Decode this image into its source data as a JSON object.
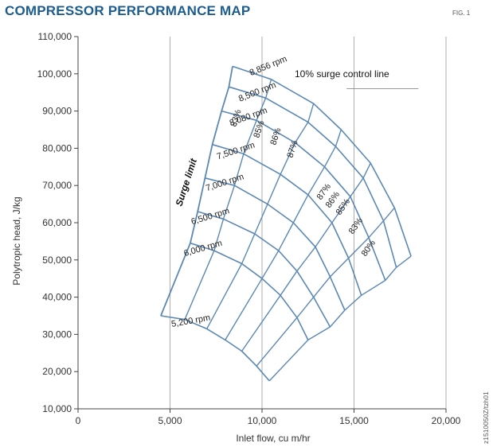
{
  "figure": {
    "title": "COMPRESSOR PERFORMANCE MAP",
    "label": "FIG. 1",
    "code": "z1510050Z/tzh01"
  },
  "chart_data": {
    "type": "line",
    "title": "COMPRESSOR PERFORMANCE MAP",
    "xlabel": "Inlet flow, cu m/hr",
    "ylabel": "Polytropic head, J/kg",
    "xlim": [
      0,
      20000
    ],
    "ylim": [
      10000,
      110000
    ],
    "x_ticks": [
      0,
      5000,
      10000,
      15000,
      20000
    ],
    "x_tick_labels": [
      "0",
      "5,000",
      "10,000",
      "15,000",
      "20,000"
    ],
    "y_ticks": [
      10000,
      20000,
      30000,
      40000,
      50000,
      60000,
      70000,
      80000,
      90000,
      100000,
      110000
    ],
    "y_tick_labels": [
      "10,000",
      "20,000",
      "30,000",
      "40,000",
      "50,000",
      "60,000",
      "70,000",
      "80,000",
      "90,000",
      "100,000",
      "110,000"
    ],
    "grid": "vertical",
    "line_color": "#5b88b4",
    "speed_lines": [
      {
        "label": "8,856 rpm",
        "x": [
          8400,
          10500,
          12800,
          14300,
          15900,
          17200,
          18100
        ],
        "y": [
          102000,
          98500,
          92000,
          85000,
          76000,
          64000,
          51000
        ]
      },
      {
        "label": "8,500 rpm",
        "x": [
          8200,
          10200,
          12500,
          14000,
          15500,
          16600,
          17300
        ],
        "y": [
          96500,
          93500,
          87000,
          80500,
          72000,
          60500,
          48000
        ]
      },
      {
        "label": "8,080 rpm",
        "x": [
          7800,
          9700,
          11800,
          13400,
          14800,
          15800,
          16700
        ],
        "y": [
          90000,
          87500,
          81500,
          75000,
          67000,
          56000,
          44500
        ]
      },
      {
        "label": "7,500 rpm",
        "x": [
          7300,
          9000,
          11000,
          12500,
          13800,
          14700,
          15400
        ],
        "y": [
          81000,
          78500,
          73000,
          67500,
          60000,
          50500,
          40500
        ]
      },
      {
        "label": "7,000 rpm",
        "x": [
          6900,
          8500,
          10300,
          11700,
          12900,
          13700,
          14500
        ],
        "y": [
          72000,
          70000,
          65000,
          60000,
          53500,
          45500,
          36500
        ]
      },
      {
        "label": "6,500 rpm",
        "x": [
          6500,
          7900,
          9600,
          10900,
          11900,
          12800,
          13700
        ],
        "y": [
          63000,
          61000,
          57000,
          52500,
          47000,
          40000,
          32000
        ]
      },
      {
        "label": "6,000 rpm",
        "x": [
          6100,
          7400,
          8900,
          10000,
          11000,
          11900,
          12500
        ],
        "y": [
          54500,
          52500,
          49000,
          45000,
          40500,
          34500,
          28500
        ]
      },
      {
        "label": "5,200 rpm",
        "x": [
          4500,
          5800,
          7000,
          8000,
          8900,
          9700,
          10400
        ],
        "y": [
          35000,
          34000,
          31500,
          28500,
          25500,
          21500,
          17500
        ]
      }
    ],
    "surge_limit_line": {
      "x": [
        4500,
        6100,
        6500,
        6900,
        7300,
        7800,
        8200,
        8400
      ],
      "y": [
        35000,
        54500,
        63000,
        72000,
        81000,
        90000,
        96500,
        102000
      ]
    },
    "annotations": {
      "surge_control_line": "10% surge control line",
      "surge_limit": "Surge limit",
      "efficiency_left": [
        "83%",
        "85%",
        "86%",
        "87%"
      ],
      "efficiency_right": [
        "87%",
        "86%",
        "85%",
        "83%",
        "80%"
      ]
    }
  }
}
